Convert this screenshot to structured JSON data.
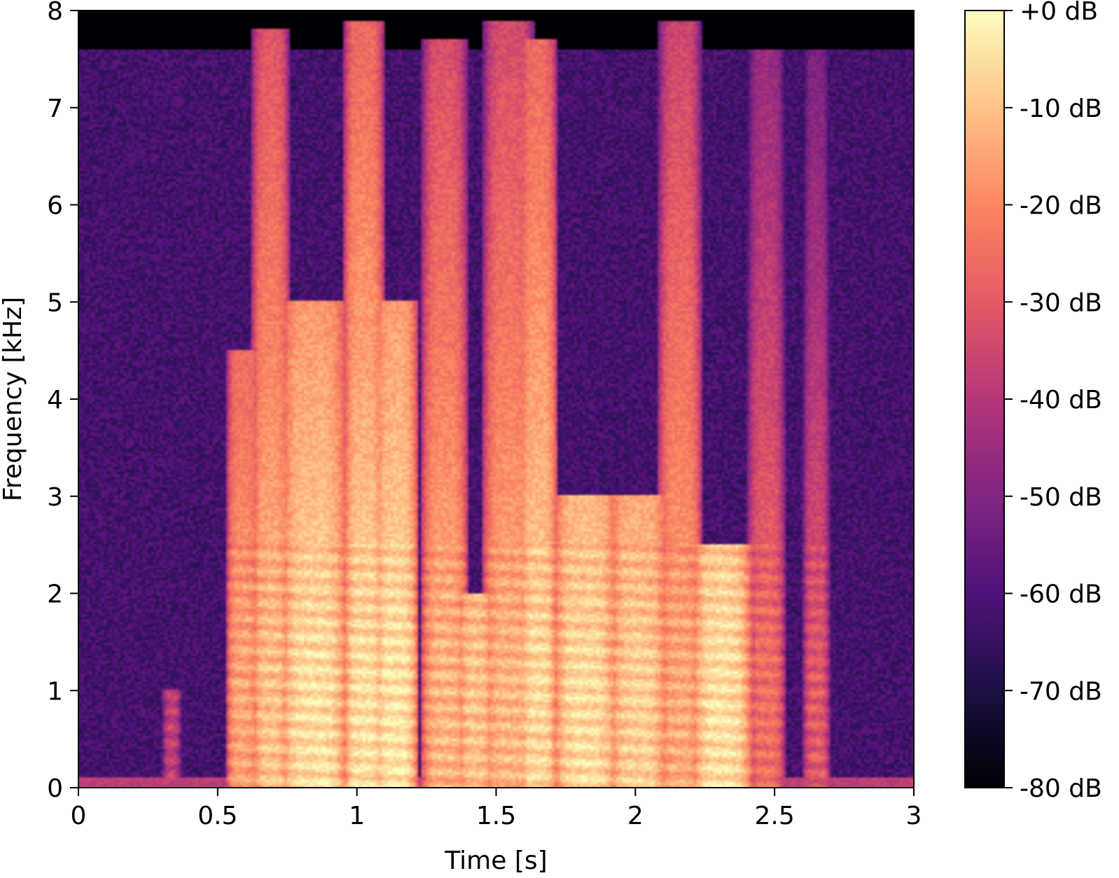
{
  "chart_data": {
    "type": "heatmap",
    "kind": "spectrogram",
    "title": "",
    "xlabel": "Time [s]",
    "ylabel": "Frequency [kHz]",
    "xlim": [
      0,
      3
    ],
    "ylim": [
      0,
      8
    ],
    "x_ticks": [
      0,
      0.5,
      1,
      1.5,
      2,
      2.5,
      3
    ],
    "x_tick_labels": [
      "0",
      "0.5",
      "1",
      "1.5",
      "2",
      "2.5",
      "3"
    ],
    "y_ticks": [
      0,
      1,
      2,
      3,
      4,
      5,
      6,
      7,
      8
    ],
    "y_tick_labels": [
      "0",
      "1",
      "2",
      "3",
      "4",
      "5",
      "6",
      "7",
      "8"
    ],
    "colormap": "magma",
    "colormap_stops": [
      "#000004",
      "#1c1044",
      "#4f127b",
      "#812581",
      "#b5367a",
      "#e55964",
      "#fb8761",
      "#fec287",
      "#fcfdbf"
    ],
    "colorbar": {
      "range": [
        -80,
        0
      ],
      "ticks": [
        0,
        -10,
        -20,
        -30,
        -40,
        -50,
        -60,
        -70,
        -80
      ],
      "tick_labels": [
        "+0 dB",
        "-10 dB",
        "-20 dB",
        "-30 dB",
        "-40 dB",
        "-50 dB",
        "-60 dB",
        "-70 dB",
        "-80 dB"
      ]
    },
    "noise_floor_db": -62,
    "bandwidth_limit_khz": 7.6,
    "events": [
      {
        "t_start": 0.55,
        "t_end": 0.63,
        "peak_db": -15,
        "f_top_khz": 4.5
      },
      {
        "t_start": 0.64,
        "t_end": 0.74,
        "peak_db": -10,
        "f_top_khz": 7.8
      },
      {
        "t_start": 0.74,
        "t_end": 0.95,
        "peak_db": -5,
        "f_top_khz": 5.0
      },
      {
        "t_start": 0.97,
        "t_end": 1.08,
        "peak_db": -5,
        "f_top_khz": 7.9
      },
      {
        "t_start": 1.08,
        "t_end": 1.2,
        "peak_db": -4,
        "f_top_khz": 5.0
      },
      {
        "t_start": 1.25,
        "t_end": 1.38,
        "peak_db": -12,
        "f_top_khz": 7.7
      },
      {
        "t_start": 1.38,
        "t_end": 1.47,
        "peak_db": -10,
        "f_top_khz": 2.0
      },
      {
        "t_start": 1.47,
        "t_end": 1.62,
        "peak_db": -12,
        "f_top_khz": 7.9
      },
      {
        "t_start": 1.6,
        "t_end": 1.7,
        "peak_db": -6,
        "f_top_khz": 7.7
      },
      {
        "t_start": 1.72,
        "t_end": 1.92,
        "peak_db": -6,
        "f_top_khz": 3.0
      },
      {
        "t_start": 1.92,
        "t_end": 2.1,
        "peak_db": -8,
        "f_top_khz": 3.0
      },
      {
        "t_start": 2.1,
        "t_end": 2.22,
        "peak_db": -14,
        "f_top_khz": 7.9
      },
      {
        "t_start": 2.22,
        "t_end": 2.4,
        "peak_db": -5,
        "f_top_khz": 2.5
      },
      {
        "t_start": 2.42,
        "t_end": 2.52,
        "peak_db": -25,
        "f_top_khz": 7.6
      },
      {
        "t_start": 2.62,
        "t_end": 2.68,
        "peak_db": -30,
        "f_top_khz": 7.6
      },
      {
        "t_start": 0.32,
        "t_end": 0.35,
        "peak_db": -38,
        "f_top_khz": 1.0
      }
    ]
  }
}
